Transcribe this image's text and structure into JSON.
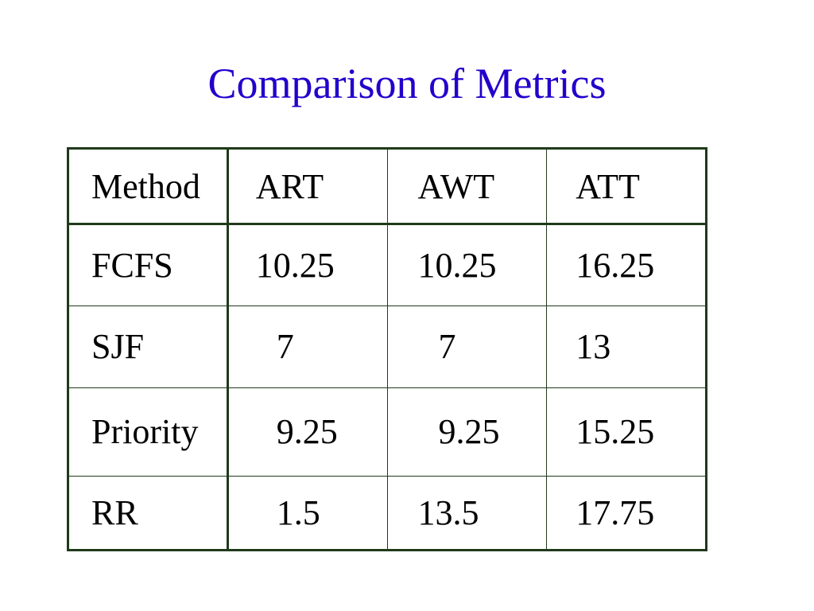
{
  "slide": {
    "title": "Comparison of Metrics",
    "colors": {
      "title": "#2200cc",
      "border": "#1f3a1a",
      "text": "#000000"
    }
  },
  "table": {
    "headers": [
      "Method",
      "ART",
      "AWT",
      "ATT"
    ],
    "rows": [
      {
        "method": "FCFS",
        "art": "10.25",
        "awt": "10.25",
        "att": "16.25"
      },
      {
        "method": "SJF",
        "art": "7",
        "awt": "7",
        "att": "13"
      },
      {
        "method": "Priority",
        "art": "9.25",
        "awt": "9.25",
        "att": "15.25"
      },
      {
        "method": "RR",
        "art": "1.5",
        "awt": "13.5",
        "att": "17.75"
      }
    ]
  }
}
